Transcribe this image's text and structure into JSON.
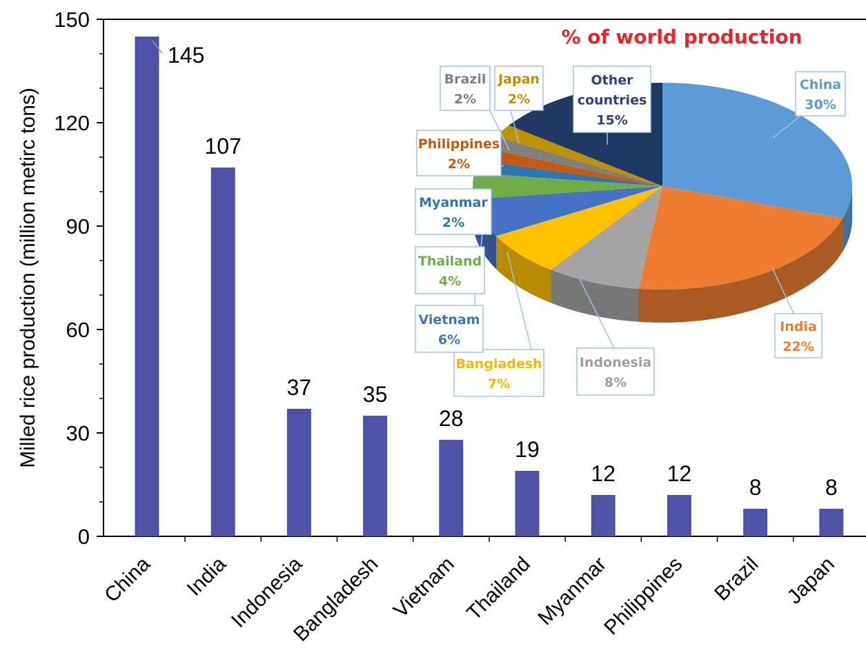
{
  "chart_data": [
    {
      "type": "bar",
      "categories": [
        "China",
        "India",
        "Indonesia",
        "Bangladesh",
        "Vietnam",
        "Thailand",
        "Myanmar",
        "Philippines",
        "Brazil",
        "Japan"
      ],
      "values": [
        145,
        107,
        37,
        35,
        28,
        19,
        12,
        12,
        8,
        8
      ],
      "data_labels": [
        "145",
        "107",
        "37",
        "35",
        "28",
        "19",
        "12",
        "12",
        "8",
        "8"
      ],
      "ylabel": "Milled rice production (million metirc tons)",
      "xlabel": "",
      "ylim": [
        0,
        150
      ],
      "yticks": [
        "0",
        "30",
        "60",
        "90",
        "120",
        "150"
      ],
      "bar_color": "#5052a8",
      "grid": false
    },
    {
      "type": "pie",
      "title": "% of world production",
      "title_color": "#e8262a",
      "slices": [
        {
          "name": "China",
          "value": 30,
          "label": "30%",
          "color": "#5b9bd5",
          "text_color": "#5b9bd5"
        },
        {
          "name": "India",
          "value": 22,
          "label": "22%",
          "color": "#ed7d31",
          "text_color": "#ed7d31"
        },
        {
          "name": "Indonesia",
          "value": 8,
          "label": "8%",
          "color": "#a5a5a5",
          "text_color": "#9e9e9e"
        },
        {
          "name": "Bangladesh",
          "value": 7,
          "label": "7%",
          "color": "#ffc000",
          "text_color": "#f5b800"
        },
        {
          "name": "Vietnam",
          "value": 6,
          "label": "6%",
          "color": "#4472c4",
          "text_color": "#4472c4"
        },
        {
          "name": "Thailand",
          "value": 4,
          "label": "4%",
          "color": "#70ad47",
          "text_color": "#70ad47"
        },
        {
          "name": "Myanmar",
          "value": 2,
          "label": "2%",
          "color": "#2e75b6",
          "text_color": "#2e75b6"
        },
        {
          "name": "Philippines",
          "value": 2,
          "label": "2%",
          "color": "#c55a11",
          "text_color": "#c55a11"
        },
        {
          "name": "Brazil",
          "value": 2,
          "label": "2%",
          "color": "#7f7f7f",
          "text_color": "#7f7f7f"
        },
        {
          "name": "Japan",
          "value": 2,
          "label": "2%",
          "color": "#bf9000",
          "text_color": "#bf9000"
        },
        {
          "name": "Other countries",
          "value": 15,
          "label": "15%",
          "color": "#203864",
          "text_color": "#2f3f7f"
        }
      ]
    }
  ]
}
